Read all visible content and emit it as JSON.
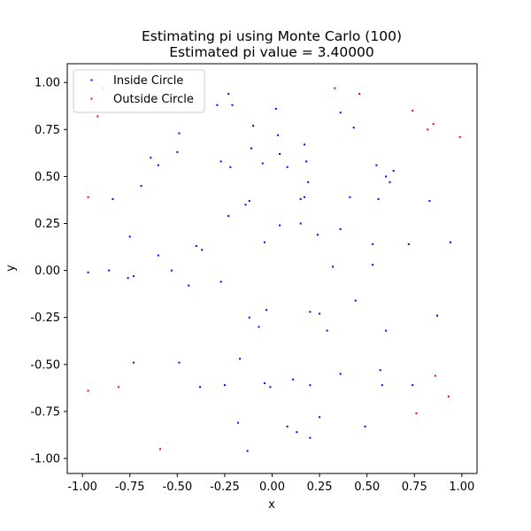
{
  "chart_data": {
    "type": "scatter",
    "title": "Estimating pi using Monte Carlo (100)",
    "subtitle": "Estimated pi value = 3.40000",
    "xlabel": "x",
    "ylabel": "y",
    "xlim": [
      -1.08,
      1.08
    ],
    "ylim": [
      -1.08,
      1.1
    ],
    "xticks": [
      "-1.00",
      "-0.75",
      "-0.50",
      "-0.25",
      "0.00",
      "0.25",
      "0.50",
      "0.75",
      "1.00"
    ],
    "yticks": [
      "-1.00",
      "-0.75",
      "-0.50",
      "-0.25",
      "0.00",
      "0.25",
      "0.50",
      "0.75",
      "1.00"
    ],
    "grid": false,
    "legend_position": "top-left",
    "series": [
      {
        "name": "Inside Circle",
        "color": "#0000ff",
        "points": [
          [
            -0.23,
            0.94
          ],
          [
            -0.29,
            0.88
          ],
          [
            -0.21,
            0.88
          ],
          [
            -0.1,
            0.77
          ],
          [
            0.02,
            0.86
          ],
          [
            0.36,
            0.84
          ],
          [
            0.43,
            0.76
          ],
          [
            -0.49,
            0.73
          ],
          [
            0.03,
            0.72
          ],
          [
            -0.11,
            0.65
          ],
          [
            0.17,
            0.67
          ],
          [
            -0.5,
            0.63
          ],
          [
            0.04,
            0.62
          ],
          [
            -0.64,
            0.6
          ],
          [
            -0.6,
            0.56
          ],
          [
            -0.27,
            0.58
          ],
          [
            -0.22,
            0.55
          ],
          [
            -0.05,
            0.57
          ],
          [
            0.08,
            0.55
          ],
          [
            0.18,
            0.58
          ],
          [
            0.55,
            0.56
          ],
          [
            0.64,
            0.53
          ],
          [
            0.6,
            0.5
          ],
          [
            0.62,
            0.47
          ],
          [
            -0.69,
            0.45
          ],
          [
            0.19,
            0.47
          ],
          [
            0.15,
            0.38
          ],
          [
            0.17,
            0.39
          ],
          [
            0.41,
            0.39
          ],
          [
            0.56,
            0.38
          ],
          [
            -0.84,
            0.38
          ],
          [
            -0.14,
            0.35
          ],
          [
            -0.12,
            0.37
          ],
          [
            -0.23,
            0.29
          ],
          [
            0.83,
            0.37
          ],
          [
            0.04,
            0.24
          ],
          [
            0.15,
            0.25
          ],
          [
            0.36,
            0.22
          ],
          [
            0.24,
            0.19
          ],
          [
            -0.75,
            0.18
          ],
          [
            -0.04,
            0.15
          ],
          [
            0.53,
            0.14
          ],
          [
            0.72,
            0.14
          ],
          [
            0.94,
            0.15
          ],
          [
            -0.4,
            0.13
          ],
          [
            -0.37,
            0.11
          ],
          [
            -0.6,
            0.08
          ],
          [
            0.53,
            0.03
          ],
          [
            0.32,
            0.02
          ],
          [
            -0.97,
            -0.01
          ],
          [
            -0.86,
            0.0
          ],
          [
            -0.53,
            0.0
          ],
          [
            -0.76,
            -0.04
          ],
          [
            -0.73,
            -0.03
          ],
          [
            -0.44,
            -0.08
          ],
          [
            -0.27,
            -0.06
          ],
          [
            -0.03,
            -0.21
          ],
          [
            0.2,
            -0.22
          ],
          [
            0.25,
            -0.23
          ],
          [
            -0.12,
            -0.25
          ],
          [
            0.44,
            -0.16
          ],
          [
            0.87,
            -0.24
          ],
          [
            -0.07,
            -0.3
          ],
          [
            0.29,
            -0.32
          ],
          [
            0.6,
            -0.32
          ],
          [
            -0.17,
            -0.47
          ],
          [
            -0.73,
            -0.49
          ],
          [
            -0.49,
            -0.49
          ],
          [
            0.36,
            -0.55
          ],
          [
            0.57,
            -0.53
          ],
          [
            0.11,
            -0.58
          ],
          [
            -0.04,
            -0.6
          ],
          [
            -0.01,
            -0.62
          ],
          [
            -0.38,
            -0.62
          ],
          [
            -0.25,
            -0.61
          ],
          [
            0.2,
            -0.61
          ],
          [
            0.58,
            -0.61
          ],
          [
            0.74,
            -0.61
          ],
          [
            0.25,
            -0.78
          ],
          [
            -0.18,
            -0.81
          ],
          [
            0.08,
            -0.83
          ],
          [
            0.13,
            -0.86
          ],
          [
            0.49,
            -0.83
          ],
          [
            0.2,
            -0.89
          ],
          [
            -0.13,
            -0.96
          ]
        ]
      },
      {
        "name": "Outside Circle",
        "color": "#ff0000",
        "points": [
          [
            -0.89,
            0.97
          ],
          [
            -0.92,
            0.82
          ],
          [
            0.33,
            0.97
          ],
          [
            0.46,
            0.94
          ],
          [
            0.74,
            0.85
          ],
          [
            0.85,
            0.78
          ],
          [
            0.82,
            0.75
          ],
          [
            0.99,
            0.71
          ],
          [
            -0.97,
            0.39
          ],
          [
            -0.97,
            -0.64
          ],
          [
            -0.81,
            -0.62
          ],
          [
            0.86,
            -0.56
          ],
          [
            0.93,
            -0.67
          ],
          [
            0.76,
            -0.76
          ],
          [
            -0.59,
            -0.95
          ]
        ]
      }
    ]
  }
}
